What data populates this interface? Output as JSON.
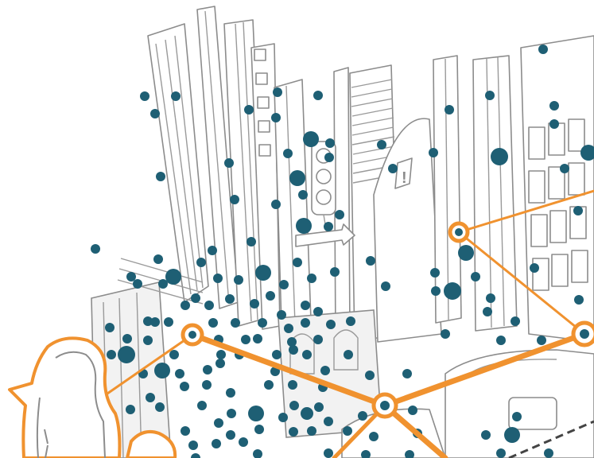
{
  "colors": {
    "dot": "#1e5f74",
    "network": "#f0922f",
    "line_art": "#8c8c8c",
    "background": "#ffffff"
  },
  "scene": {
    "elements": [
      "street-illustration",
      "traffic-light-icon",
      "one-way-sign-icon",
      "exclamation-sign-icon",
      "taxi-car-icon",
      "person-silhouette-icon",
      "network-graph"
    ]
  }
}
